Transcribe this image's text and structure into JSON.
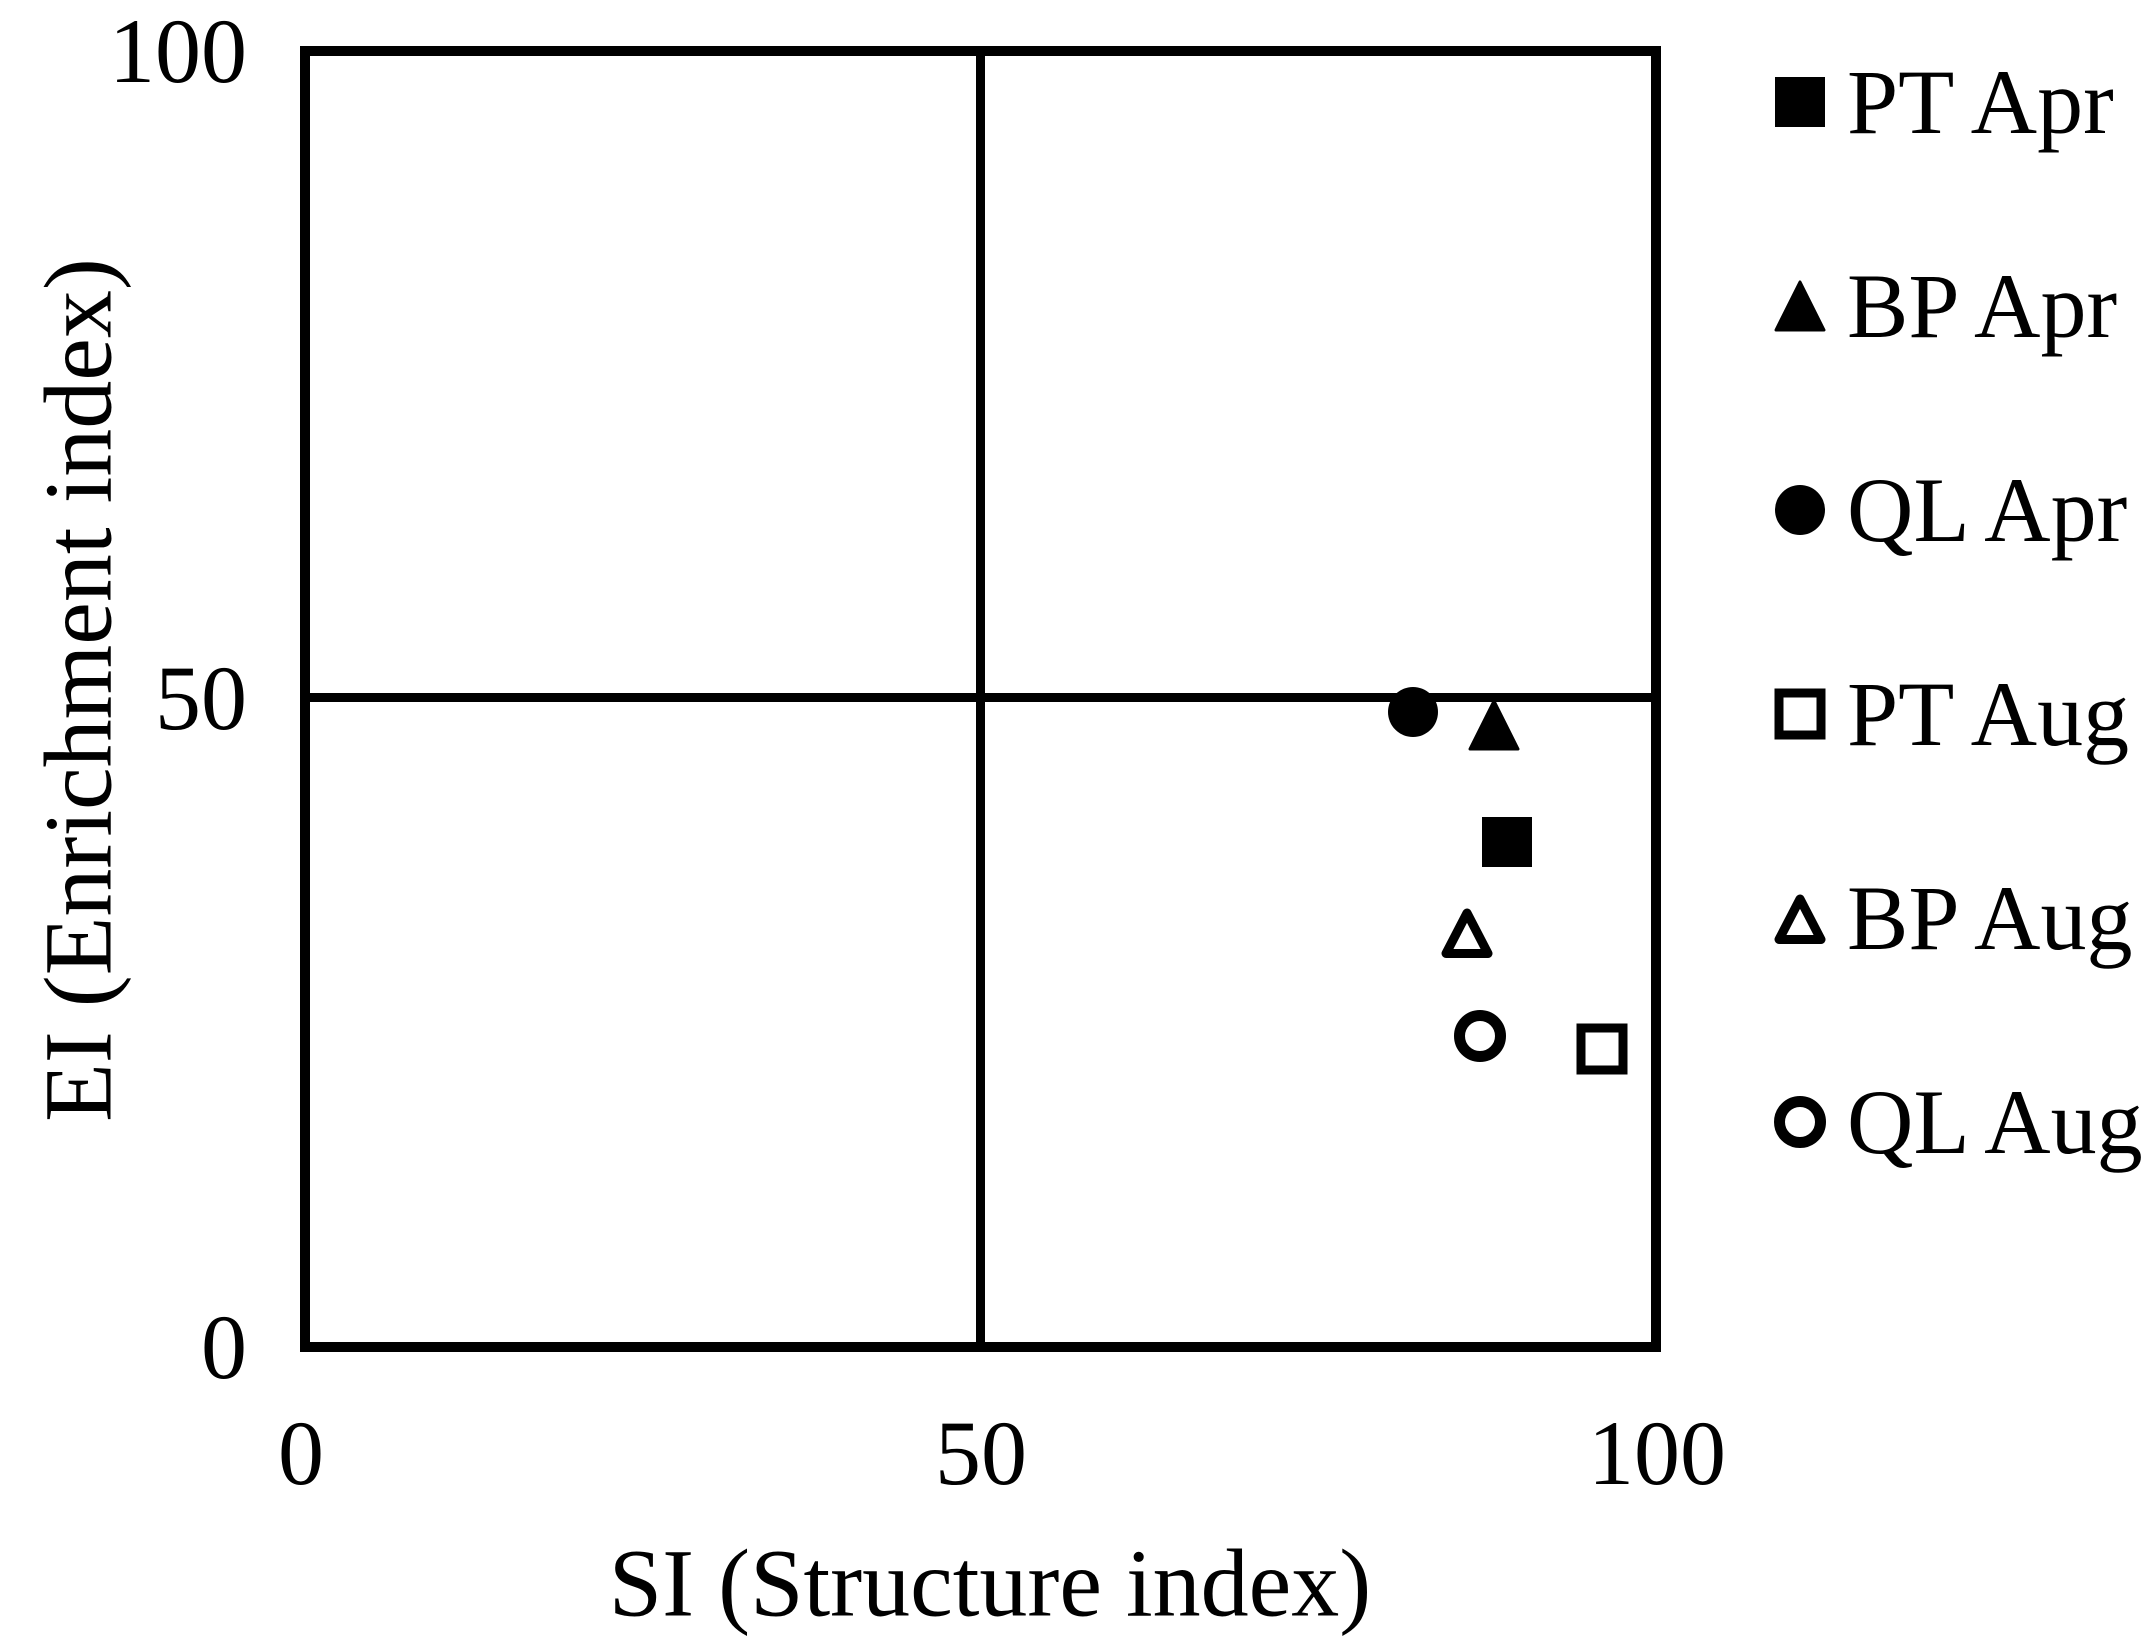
{
  "chart_data": {
    "type": "scatter",
    "xlabel": "SI (Structure index)",
    "ylabel": "EI (Enrichment index)",
    "xlim": [
      0,
      100
    ],
    "ylim": [
      0,
      100
    ],
    "x_tick_labels": [
      "0",
      "50",
      "100"
    ],
    "y_tick_labels": [
      "100",
      "50",
      "0"
    ],
    "grid": "off",
    "legend_position": "right",
    "quadrant_lines": {
      "x": 50,
      "y": 50
    },
    "colors": {
      "marker": "#000000",
      "axis": "#000000",
      "background": "#ffffff"
    },
    "series": [
      {
        "name": "PT Apr",
        "marker": "square",
        "fill": "filled",
        "points": [
          {
            "si": 89,
            "ei": 39
          }
        ]
      },
      {
        "name": "BP Apr",
        "marker": "triangle",
        "fill": "filled",
        "points": [
          {
            "si": 88,
            "ei": 48
          }
        ]
      },
      {
        "name": "QL Apr",
        "marker": "circle",
        "fill": "filled",
        "points": [
          {
            "si": 82,
            "ei": 49
          }
        ]
      },
      {
        "name": "PT Aug",
        "marker": "square",
        "fill": "open",
        "points": [
          {
            "si": 96,
            "ei": 23
          }
        ]
      },
      {
        "name": "BP Aug",
        "marker": "triangle",
        "fill": "open",
        "points": [
          {
            "si": 86,
            "ei": 32
          }
        ]
      },
      {
        "name": "QL Aug",
        "marker": "circle",
        "fill": "open",
        "points": [
          {
            "si": 87,
            "ei": 24
          }
        ]
      }
    ]
  }
}
